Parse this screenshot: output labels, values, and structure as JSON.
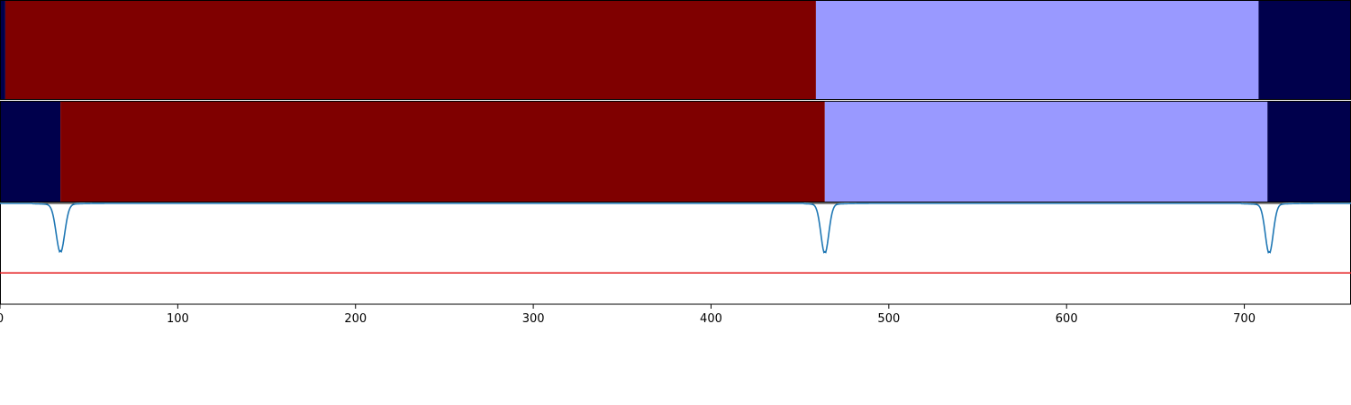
{
  "chart_data": {
    "type": "segmentation-with-signal",
    "xlim": [
      0,
      760
    ],
    "xticks": [
      0,
      100,
      200,
      300,
      400,
      500,
      600,
      700
    ],
    "xtick_labels": [
      "0",
      "100",
      "200",
      "300",
      "400",
      "500",
      "600",
      "700"
    ],
    "colors": {
      "class_a": "#00004c",
      "class_b": "#7f0000",
      "class_c": "#9999ff",
      "signal": "#1f77b4",
      "threshold": "#e41a1c"
    },
    "tracks": [
      {
        "segments": [
          {
            "start": 0,
            "end": 3,
            "class": "class_a"
          },
          {
            "start": 3,
            "end": 459,
            "class": "class_b"
          },
          {
            "start": 459,
            "end": 708,
            "class": "class_c"
          },
          {
            "start": 708,
            "end": 760,
            "class": "class_a"
          }
        ]
      },
      {
        "segments": [
          {
            "start": 0,
            "end": 34,
            "class": "class_a"
          },
          {
            "start": 34,
            "end": 464,
            "class": "class_b"
          },
          {
            "start": 464,
            "end": 713,
            "class": "class_c"
          },
          {
            "start": 713,
            "end": 760,
            "class": "class_a"
          }
        ]
      }
    ],
    "signal": {
      "ylim": [
        0,
        1
      ],
      "baseline": 1.0,
      "dips": [
        {
          "center": 34,
          "depth": 0.47,
          "width": 2.4,
          "lead": 8
        },
        {
          "center": 464,
          "depth": 0.48,
          "width": 2.2,
          "lead": 6
        },
        {
          "center": 714,
          "depth": 0.48,
          "width": 2.2,
          "lead": 8
        }
      ],
      "threshold": 0.31
    }
  }
}
